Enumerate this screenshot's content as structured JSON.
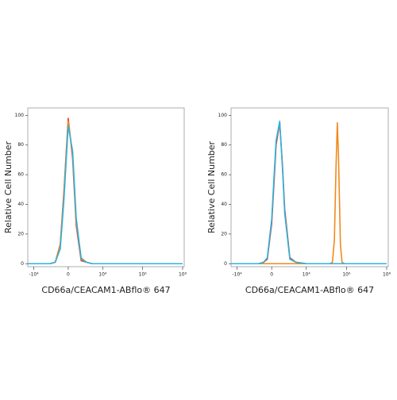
{
  "chart_data": [
    {
      "type": "line",
      "x_label": "CD66a/CEACAM1-ABflo® 647",
      "y_label": "Relative Cell Number",
      "xscale": "biexponential",
      "xlim": [
        -20000,
        120000000
      ],
      "ylim": [
        -2,
        105
      ],
      "xticks": [
        {
          "value": -10000,
          "label": "-10⁴"
        },
        0,
        {
          "value": 10000,
          "label": "10⁴"
        },
        {
          "value": 1000000,
          "label": "10⁶"
        },
        {
          "value": 100000000,
          "label": "10⁸"
        }
      ],
      "yticks": [
        0,
        20,
        40,
        60,
        80,
        100
      ],
      "series": [
        {
          "name": "red",
          "color": "#e8412c",
          "x": [
            -20000,
            -3000,
            -1500,
            -800,
            -400,
            -200,
            0,
            200,
            400,
            800,
            1500,
            3000,
            10000,
            100000,
            100000000
          ],
          "values": [
            0,
            0,
            0,
            1,
            13,
            48,
            98,
            71,
            26,
            2,
            1,
            0,
            0,
            0,
            0
          ]
        },
        {
          "name": "orange",
          "color": "#f08a1e",
          "x": [
            -20000,
            -3000,
            -1500,
            -800,
            -400,
            -200,
            0,
            200,
            400,
            800,
            1500,
            3000,
            10000,
            100000,
            100000000
          ],
          "values": [
            0,
            0,
            0,
            1,
            12,
            46,
            96,
            74,
            29,
            4,
            1,
            0,
            0,
            0,
            0
          ]
        },
        {
          "name": "blue",
          "color": "#2bb3e0",
          "x": [
            -20000,
            -3000,
            -1500,
            -800,
            -400,
            -200,
            0,
            200,
            400,
            800,
            1500,
            3000,
            10000,
            100000,
            100000000
          ],
          "values": [
            0,
            0,
            0,
            1,
            10,
            42,
            93,
            76,
            31,
            3,
            1,
            0,
            0,
            0,
            0
          ]
        }
      ]
    },
    {
      "type": "line",
      "x_label": "CD66a/CEACAM1-ABflo® 647",
      "y_label": "Relative Cell Number",
      "xscale": "biexponential",
      "xlim": [
        -20000,
        120000000
      ],
      "ylim": [
        -2,
        105
      ],
      "xticks": [
        {
          "value": -10000,
          "label": "-10⁴"
        },
        0,
        {
          "value": 10000,
          "label": "10⁴"
        },
        {
          "value": 1000000,
          "label": "10⁶"
        },
        {
          "value": 100000000,
          "label": "10⁸"
        }
      ],
      "yticks": [
        0,
        20,
        40,
        60,
        80,
        100
      ],
      "series": [
        {
          "name": "red",
          "color": "#e8412c",
          "x": [
            -20000,
            -1500,
            -800,
            -400,
            -200,
            0,
            100,
            200,
            400,
            600,
            800,
            1500,
            3000,
            10000,
            100000000
          ],
          "values": [
            0,
            0,
            0,
            1,
            3,
            27,
            54,
            80,
            95,
            66,
            37,
            4,
            1,
            0,
            0
          ]
        },
        {
          "name": "orange",
          "color": "#f08a1e",
          "x": [
            -20000,
            0,
            10000,
            100000,
            150000,
            200000,
            250000,
            300000,
            350000,
            400000,
            500000,
            600000,
            800000,
            1000000,
            100000000
          ],
          "values": [
            0,
            0,
            0,
            0,
            0,
            1,
            16,
            64,
            95,
            73,
            13,
            1,
            0,
            0,
            0
          ]
        },
        {
          "name": "blue",
          "color": "#2bb3e0",
          "x": [
            -20000,
            -1500,
            -800,
            -400,
            -200,
            0,
            100,
            200,
            400,
            600,
            800,
            1500,
            3000,
            10000,
            100000000
          ],
          "values": [
            0,
            0,
            0,
            1,
            4,
            30,
            58,
            83,
            96,
            64,
            34,
            3,
            1,
            0,
            0
          ]
        }
      ]
    }
  ]
}
